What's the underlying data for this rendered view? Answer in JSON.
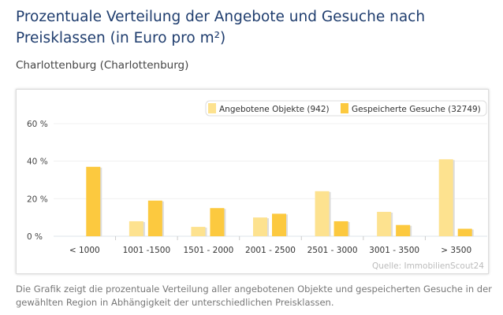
{
  "header": {
    "title": "Prozentuale Verteilung der Angebote und Gesuche nach Preisklassen (in Euro pro m²)",
    "subtitle": "Charlottenburg (Charlottenburg)"
  },
  "chart_data": {
    "type": "bar",
    "categories": [
      "< 1000",
      "1001 -1500",
      "1501 - 2000",
      "2001 - 2500",
      "2501 - 3000",
      "3001 - 3500",
      "> 3500"
    ],
    "series": [
      {
        "name": "Angebotene Objekte (942)",
        "color": "#fde28f",
        "values": [
          0,
          8,
          5,
          10,
          24,
          13,
          41
        ]
      },
      {
        "name": "Gespeicherte Gesuche (32749)",
        "color": "#fcc93f",
        "values": [
          37,
          19,
          15,
          12,
          8,
          6,
          4
        ]
      }
    ],
    "ylim": [
      0,
      60
    ],
    "yticks": [
      "0 %",
      "20 %",
      "40 %",
      "60 %"
    ],
    "ytick_values": [
      0,
      20,
      40,
      60
    ],
    "grid": true,
    "legend": "top-right",
    "source": "Quelle: ImmobilienScout24"
  },
  "footer": {
    "note": "Die Grafik zeigt die prozentuale Verteilung aller angebotenen Objekte und gespeicherten Gesuche in der gewählten Region in Abhängigkeit der unterschiedlichen Preisklassen."
  }
}
